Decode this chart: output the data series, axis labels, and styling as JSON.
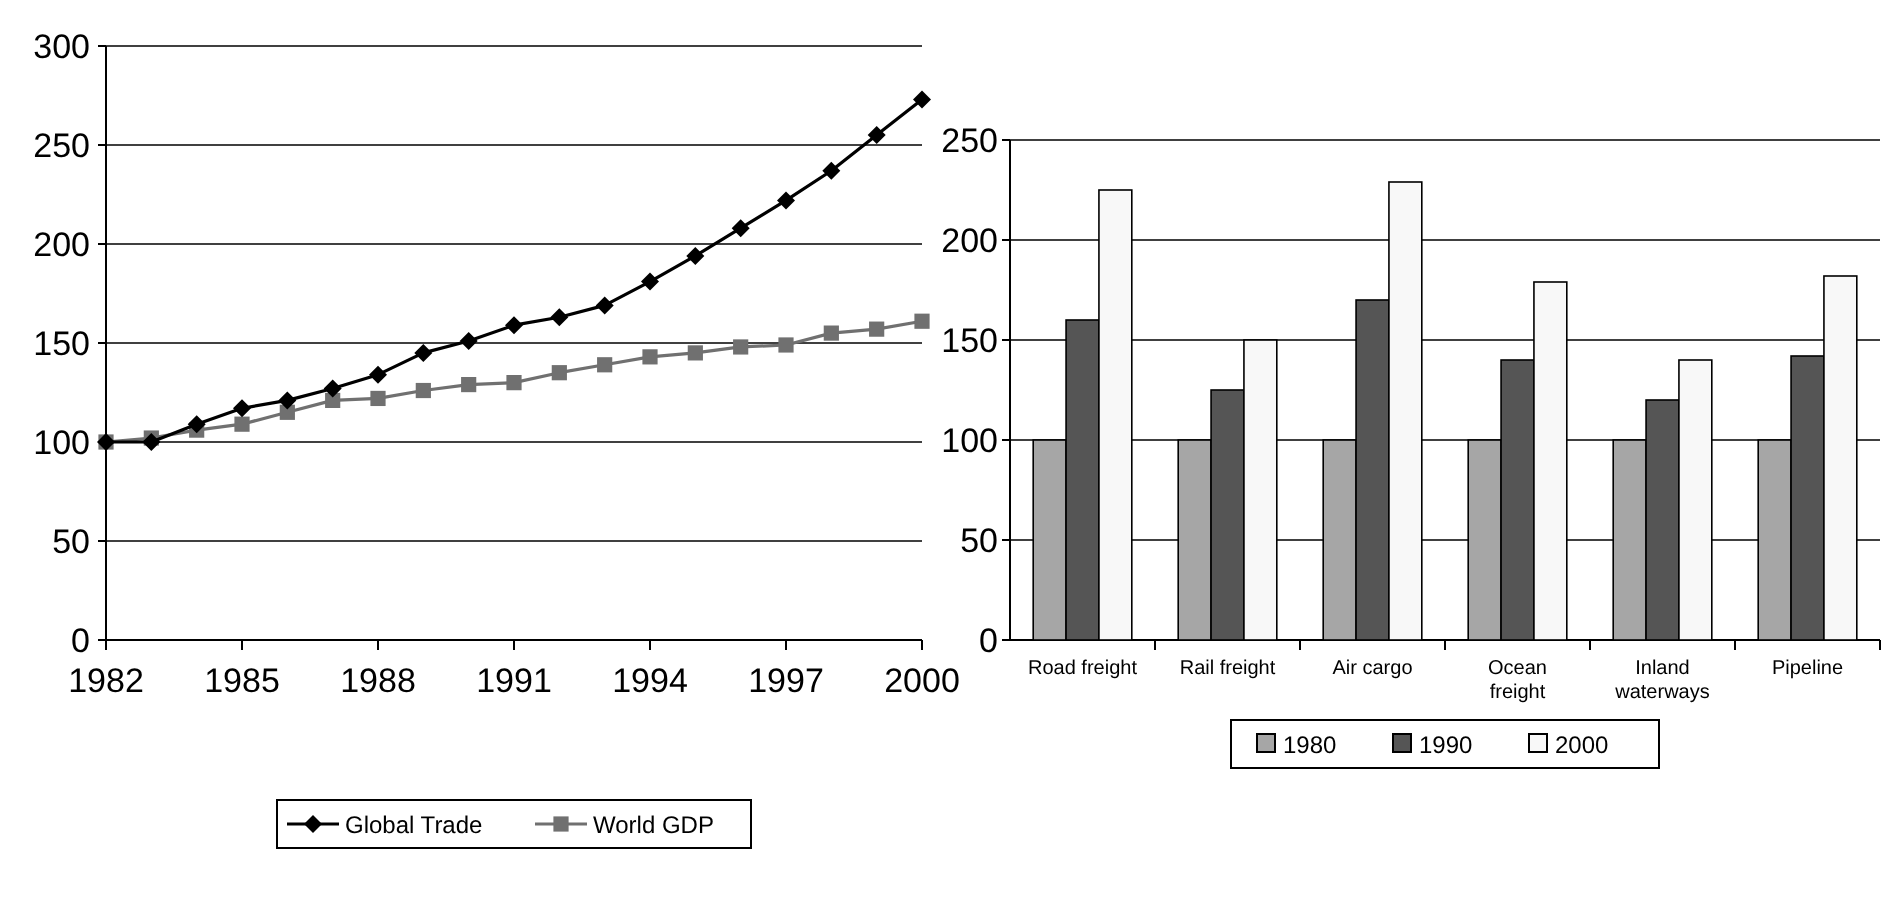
{
  "chart_data": [
    {
      "type": "line",
      "x": [
        1982,
        1983,
        1984,
        1985,
        1986,
        1987,
        1988,
        1989,
        1990,
        1991,
        1992,
        1993,
        1994,
        1995,
        1996,
        1997,
        1998,
        1999,
        2000
      ],
      "series": [
        {
          "name": "Global Trade",
          "color": "#000000",
          "marker": "diamond",
          "values": [
            100,
            100,
            109,
            117,
            121,
            127,
            134,
            145,
            151,
            159,
            163,
            169,
            181,
            194,
            208,
            222,
            237,
            255,
            273
          ]
        },
        {
          "name": "World GDP",
          "color": "#707070",
          "marker": "square",
          "values": [
            100,
            102,
            106,
            109,
            115,
            121,
            122,
            126,
            129,
            130,
            135,
            139,
            143,
            145,
            148,
            149,
            155,
            157,
            161
          ]
        }
      ],
      "xlim": [
        1982,
        2000
      ],
      "xticks": [
        1982,
        1985,
        1988,
        1991,
        1994,
        1997,
        2000
      ],
      "ylim": [
        0,
        300
      ],
      "yticks": [
        0,
        50,
        100,
        150,
        200,
        250,
        300
      ],
      "grid": "y",
      "legend": "bottom"
    },
    {
      "type": "bar",
      "categories": [
        "Road freight",
        "Rail freight",
        "Air cargo",
        "Ocean freight",
        "Inland waterways",
        "Pipeline"
      ],
      "series": [
        {
          "name": "1980",
          "color": "#a6a6a6",
          "values": [
            100,
            100,
            100,
            100,
            100,
            100
          ]
        },
        {
          "name": "1990",
          "color": "#555555",
          "values": [
            160,
            125,
            170,
            140,
            120,
            142
          ]
        },
        {
          "name": "2000",
          "color": "#f8f8f8",
          "values": [
            225,
            150,
            229,
            179,
            140,
            182
          ]
        }
      ],
      "ylim": [
        0,
        250
      ],
      "yticks": [
        0,
        50,
        100,
        150,
        200,
        250
      ],
      "grid": "y",
      "legend": "bottom"
    }
  ]
}
